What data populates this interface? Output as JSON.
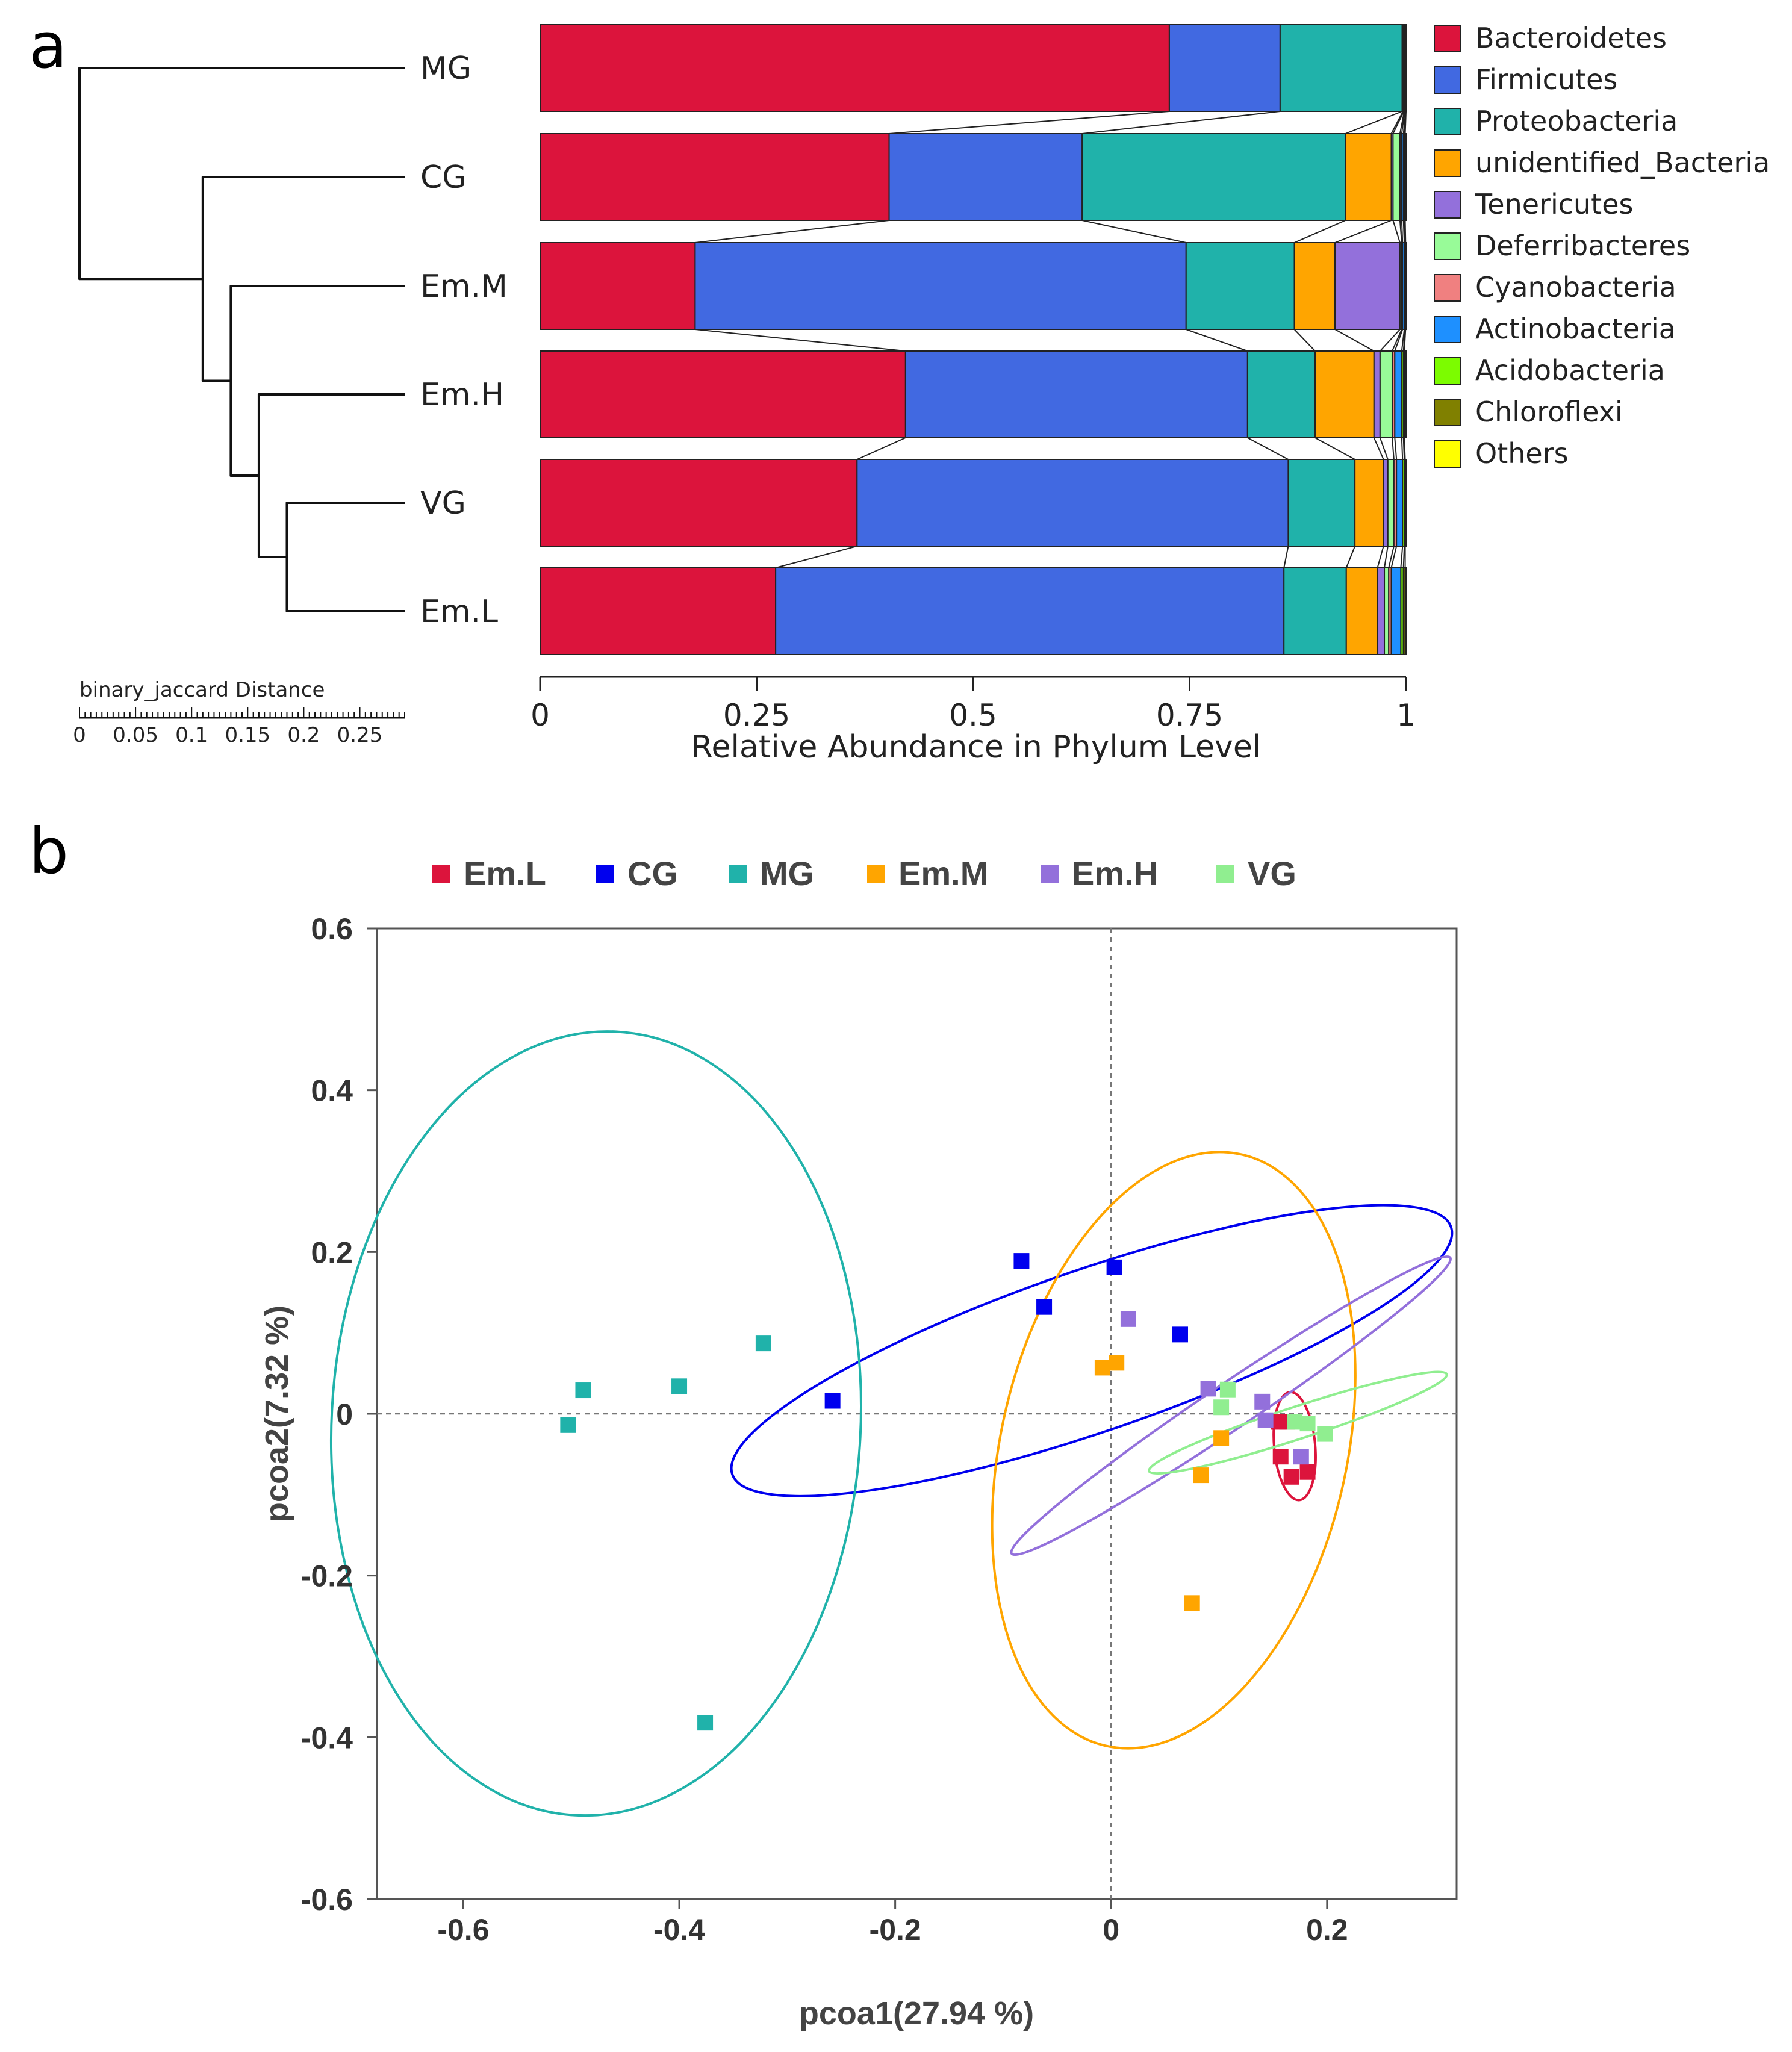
{
  "panel_labels": {
    "a": "a",
    "b": "b"
  },
  "chart_data": [
    {
      "type": "bar",
      "orientation": "horizontal-stacked",
      "title": "",
      "xlabel": "Relative Abundance in Phylum Level",
      "xlim": [
        0,
        1
      ],
      "xticks": [
        "0",
        "0.25",
        "0.5",
        "0.75",
        "1"
      ],
      "categories": [
        "MG",
        "CG",
        "Em.M",
        "Em.H",
        "VG",
        "Em.L"
      ],
      "legend": [
        {
          "name": "Bacteroidetes",
          "color": "#DC143C"
        },
        {
          "name": "Firmicutes",
          "color": "#4169E1"
        },
        {
          "name": "Proteobacteria",
          "color": "#20B2AA"
        },
        {
          "name": "unidentified_Bacteria",
          "color": "#FFA500"
        },
        {
          "name": "Tenericutes",
          "color": "#9370DB"
        },
        {
          "name": "Deferribacteres",
          "color": "#98FB98"
        },
        {
          "name": "Cyanobacteria",
          "color": "#F08080"
        },
        {
          "name": "Actinobacteria",
          "color": "#1E90FF"
        },
        {
          "name": "Acidobacteria",
          "color": "#7CFC00"
        },
        {
          "name": "Chloroflexi",
          "color": "#808000"
        },
        {
          "name": "Others",
          "color": "#FFFF00"
        }
      ],
      "values": {
        "MG": [
          0.727,
          0.128,
          0.141,
          0.001,
          0.001,
          0.0005,
          0.0005,
          0.001,
          0.0003,
          0.0002,
          0.0
        ],
        "CG": [
          0.403,
          0.223,
          0.304,
          0.053,
          0.002,
          0.008,
          0.002,
          0.002,
          0.001,
          0.001,
          0.001
        ],
        "Em.M": [
          0.179,
          0.567,
          0.125,
          0.047,
          0.075,
          0.002,
          0.001,
          0.002,
          0.001,
          0.0005,
          0.0005
        ],
        "Em.H": [
          0.422,
          0.395,
          0.078,
          0.068,
          0.007,
          0.014,
          0.003,
          0.008,
          0.002,
          0.001,
          0.002
        ],
        "VG": [
          0.366,
          0.498,
          0.077,
          0.033,
          0.005,
          0.007,
          0.003,
          0.007,
          0.002,
          0.001,
          0.001
        ],
        "Em.L": [
          0.272,
          0.587,
          0.072,
          0.036,
          0.008,
          0.005,
          0.003,
          0.011,
          0.003,
          0.002,
          0.001
        ]
      },
      "dendrogram": {
        "label": "binary_jaccard Distance",
        "scale_ticks": [
          "0",
          "0.05",
          "0.1",
          "0.15",
          "0.2",
          "0.25"
        ],
        "merges": [
          {
            "a": "VG",
            "b": "Em.L",
            "height": 0.105
          },
          {
            "a": "Em.H",
            "b": "VG+Em.L",
            "height": 0.13
          },
          {
            "a": "Em.M",
            "b": "Em.H+VG+Em.L",
            "height": 0.155
          },
          {
            "a": "CG",
            "b": "Em.M+Em.H+VG+Em.L",
            "height": 0.18
          },
          {
            "a": "MG",
            "b": "rest",
            "height": 0.29
          }
        ]
      }
    },
    {
      "type": "scatter",
      "title": "",
      "xlabel": "pcoa1(27.94 %)",
      "ylabel": "pcoa2(7.32 %)",
      "xlim": [
        -0.68,
        0.32
      ],
      "ylim": [
        -0.6,
        0.6
      ],
      "xticks": [
        "-0.6",
        "-0.4",
        "-0.2",
        "0",
        "0.2"
      ],
      "yticks": [
        "0.6",
        "0.4",
        "0.2",
        "0",
        "-0.2",
        "-0.4",
        "-0.6"
      ],
      "legend_position": "top",
      "series": [
        {
          "name": "Em.L",
          "color": "#DC143C",
          "points": [
            [
              0.157,
              -0.053
            ],
            [
              0.167,
              -0.078
            ],
            [
              0.182,
              -0.072
            ],
            [
              0.163,
              -0.01
            ],
            [
              0.155,
              -0.01
            ]
          ],
          "ellipse": {
            "cx": 0.17,
            "cy": -0.04,
            "rx": 0.019,
            "ry": 0.067,
            "angle_deg": 5
          }
        },
        {
          "name": "CG",
          "color": "#0000EE",
          "points": [
            [
              -0.083,
              0.189
            ],
            [
              -0.062,
              0.132
            ],
            [
              0.003,
              0.181
            ],
            [
              0.064,
              0.098
            ],
            [
              -0.258,
              0.016
            ]
          ],
          "ellipse": {
            "cx": -0.018,
            "cy": 0.078,
            "rx": 0.352,
            "ry": 0.1,
            "angle_deg": 19
          }
        },
        {
          "name": "MG",
          "color": "#20B2AA",
          "points": [
            [
              -0.503,
              -0.014
            ],
            [
              -0.489,
              0.029
            ],
            [
              -0.4,
              0.034
            ],
            [
              -0.322,
              0.087
            ],
            [
              -0.376,
              -0.382
            ]
          ],
          "ellipse": {
            "cx": -0.477,
            "cy": -0.012,
            "rx": 0.245,
            "ry": 0.485,
            "angle_deg": -3
          }
        },
        {
          "name": "Em.M",
          "color": "#FFA500",
          "points": [
            [
              -0.008,
              0.057
            ],
            [
              0.005,
              0.063
            ],
            [
              0.102,
              -0.03
            ],
            [
              0.083,
              -0.076
            ],
            [
              0.075,
              -0.234
            ]
          ],
          "ellipse": {
            "cx": 0.058,
            "cy": -0.045,
            "rx": 0.16,
            "ry": 0.375,
            "angle_deg": -13
          }
        },
        {
          "name": "Em.H",
          "color": "#9370DB",
          "points": [
            [
              0.016,
              0.117
            ],
            [
              0.09,
              0.031
            ],
            [
              0.14,
              0.015
            ],
            [
              0.143,
              -0.008
            ],
            [
              0.176,
              -0.053
            ]
          ],
          "ellipse": {
            "cx": 0.111,
            "cy": 0.01,
            "rx": 0.245,
            "ry": 0.028,
            "angle_deg": 34
          }
        },
        {
          "name": "VG",
          "color": "#90EE90",
          "points": [
            [
              0.108,
              0.03
            ],
            [
              0.102,
              0.008
            ],
            [
              0.17,
              -0.01
            ],
            [
              0.182,
              -0.012
            ],
            [
              0.198,
              -0.025
            ]
          ],
          "ellipse": {
            "cx": 0.173,
            "cy": -0.011,
            "rx": 0.145,
            "ry": 0.02,
            "angle_deg": 18
          }
        }
      ]
    }
  ]
}
